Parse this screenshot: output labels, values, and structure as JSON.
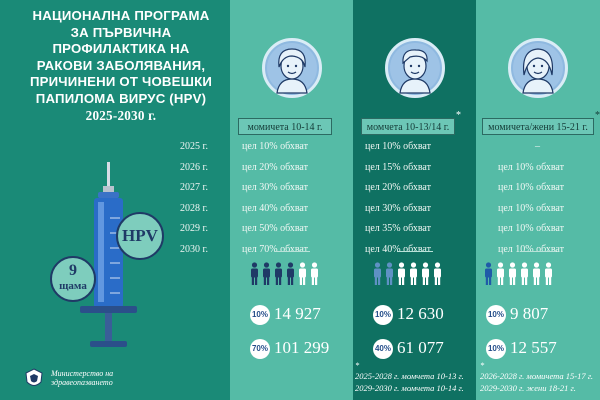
{
  "title": {
    "line1": "НАЦИОНАЛНА ПРОГРАМА",
    "line2": "ЗА ПЪРВИЧНА",
    "line3": "ПРОФИЛАКТИКА НА",
    "line4": "РАКОВИ ЗАБОЛЯВАНИЯ,",
    "line5": "ПРИЧИНЕНИ ОТ ЧОВЕШКИ",
    "line6": "ПАПИЛОМА ВИРУС (HPV)",
    "line7": "2025-2030 г."
  },
  "years": [
    "2025 г.",
    "2026 г.",
    "2027 г.",
    "2028 г.",
    "2029 г.",
    "2030 г."
  ],
  "vaccine": {
    "label": "HPV",
    "doses_number": "9",
    "doses_word": "щама"
  },
  "columns": [
    {
      "header": "момичета 10-14 г.",
      "star": "",
      "targets": [
        "цел 10% обхват",
        "цел 20% обхват",
        "цел 30% обхват",
        "цел 40% обхват",
        "цел 50% обхват",
        "цел 70% обхват"
      ],
      "stat1": {
        "pct": "10%",
        "count": "14 927"
      },
      "stat2": {
        "pct": "70%",
        "count": "101 299"
      },
      "figures_filled": 4,
      "figures_total": 6,
      "figure_color": "#1f3a66"
    },
    {
      "header": "момчета 10-13/14 г.",
      "star": "*",
      "targets": [
        "цел 10% обхват",
        "цел 15% обхват",
        "цел 20% обхват",
        "цел 30% обхват",
        "цел 35% обхват",
        "цел 40% обхват"
      ],
      "stat1": {
        "pct": "10%",
        "count": "12 630"
      },
      "stat2": {
        "pct": "40%",
        "count": "61 077"
      },
      "figures_filled": 2,
      "figures_total": 6,
      "figure_color": "#5f91c4",
      "notes": [
        "2025-2028 г. момчета 10-13 г.",
        "2029-2030 г. момчета 10-14 г."
      ]
    },
    {
      "header": "момичета/жени 15-21 г.",
      "star": "*",
      "targets": [
        "–",
        "цел 10% обхват",
        "цел 10% обхват",
        "цел 10% обхват",
        "цел 10% обхват",
        "цел 10% обхват"
      ],
      "stat1": {
        "pct": "10%",
        "count": "9 807"
      },
      "stat2": {
        "pct": "10%",
        "count": "12 557"
      },
      "figures_filled": 1,
      "figures_total": 6,
      "figure_color": "#1f5aa8",
      "notes": [
        "2026-2028 г. момичета 15-17 г.",
        "2029-2030 г. жени 18-21 г."
      ],
      "note_star": "*"
    }
  ],
  "ministry": {
    "line1": "Министерство на",
    "line2": "здравеопазването"
  },
  "colors": {
    "background": "#1a8a77",
    "column_light": "#55bba6",
    "column_dark": "#0f7162",
    "header": "#6cc7b6",
    "syringe_blue": "#2a6cc8",
    "badge": "#7ecdbd"
  }
}
